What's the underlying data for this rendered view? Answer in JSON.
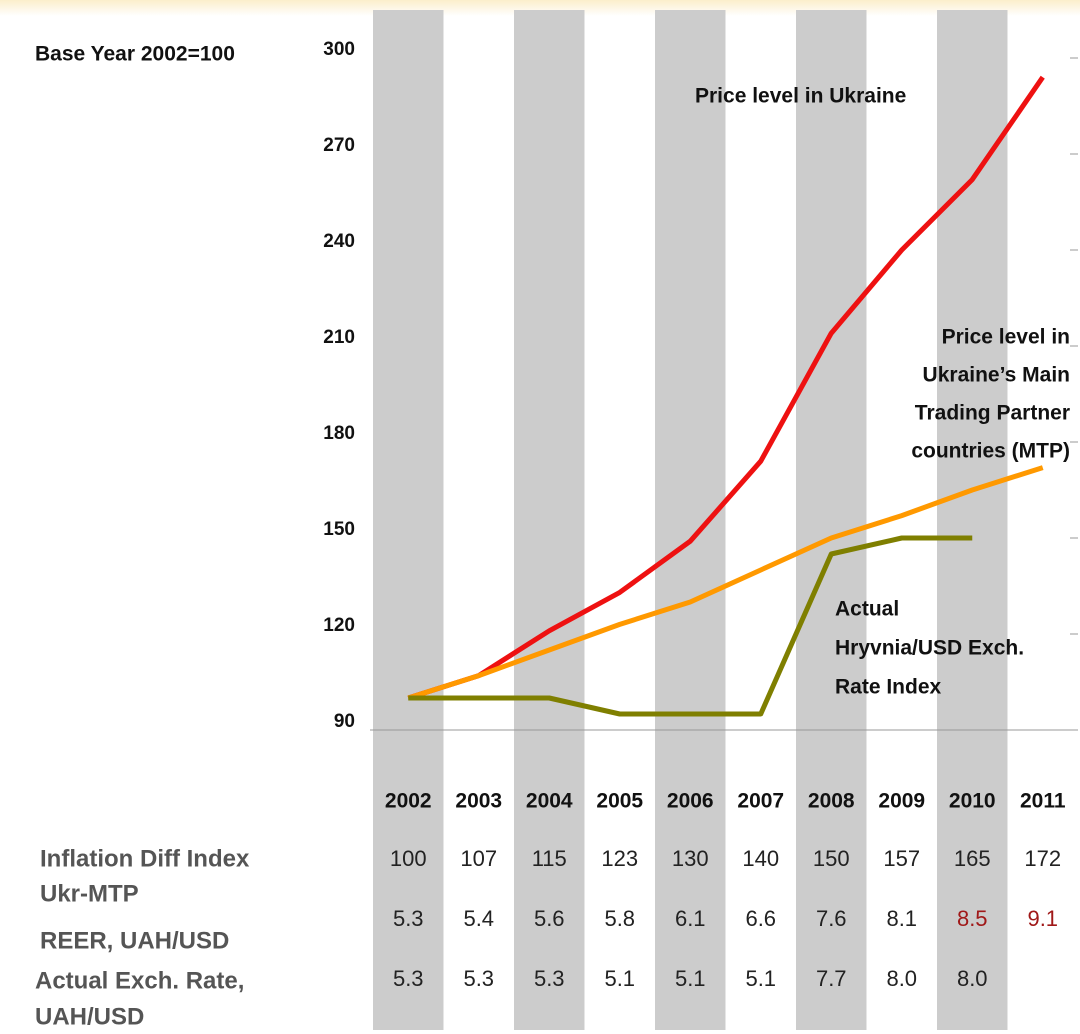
{
  "chart_data": {
    "type": "line",
    "y_label": "Base Year 2002=100",
    "categories": [
      "2002",
      "2003",
      "2004",
      "2005",
      "2006",
      "2007",
      "2008",
      "2009",
      "2010",
      "2011"
    ],
    "ylim": [
      90,
      300
    ],
    "yticks": [
      90,
      120,
      150,
      180,
      210,
      240,
      270,
      300
    ],
    "band_color": "#cccccc",
    "series": [
      {
        "name": "Price level in Ukraine",
        "color": "#ee1111",
        "values": [
          100,
          107,
          121,
          133,
          149,
          174,
          214,
          240,
          262,
          294
        ]
      },
      {
        "name": [
          "Price level in",
          "Ukraine’s Main",
          "Trading Partner",
          "countries (MTP)"
        ],
        "color": "#ff9900",
        "values": [
          100,
          107,
          115,
          123,
          130,
          140,
          150,
          157,
          165,
          172
        ]
      },
      {
        "name": [
          "Actual",
          "Hryvnia/USD Exch.",
          "Rate Index"
        ],
        "color": "#7f7f00",
        "values": [
          100,
          100,
          100,
          95,
          95,
          95,
          145,
          150,
          150,
          null
        ]
      }
    ],
    "table": [
      {
        "label": [
          "Inflation Diff Index",
          "Ukr-MTP"
        ],
        "values": [
          "100",
          "107",
          "115",
          "123",
          "130",
          "140",
          "150",
          "157",
          "165",
          "172"
        ],
        "colors": [
          "#222",
          "#222",
          "#222",
          "#222",
          "#222",
          "#222",
          "#222",
          "#222",
          "#222",
          "#222"
        ]
      },
      {
        "label": [
          "REER, UAH/USD"
        ],
        "values": [
          "5.3",
          "5.4",
          "5.6",
          "5.8",
          "6.1",
          "6.6",
          "7.6",
          "8.1",
          "8.5",
          "9.1"
        ],
        "colors": [
          "#222",
          "#222",
          "#222",
          "#222",
          "#222",
          "#222",
          "#222",
          "#222",
          "#a01818",
          "#a01818"
        ]
      },
      {
        "label": [
          "Actual Exch. Rate,",
          "UAH/USD"
        ],
        "values": [
          "5.3",
          "5.3",
          "5.3",
          "5.1",
          "5.1",
          "5.1",
          "7.7",
          "8.0",
          "8.0"
        ],
        "colors": [
          "#222",
          "#222",
          "#222",
          "#222",
          "#222",
          "#222",
          "#222",
          "#222",
          "#222"
        ]
      }
    ]
  }
}
